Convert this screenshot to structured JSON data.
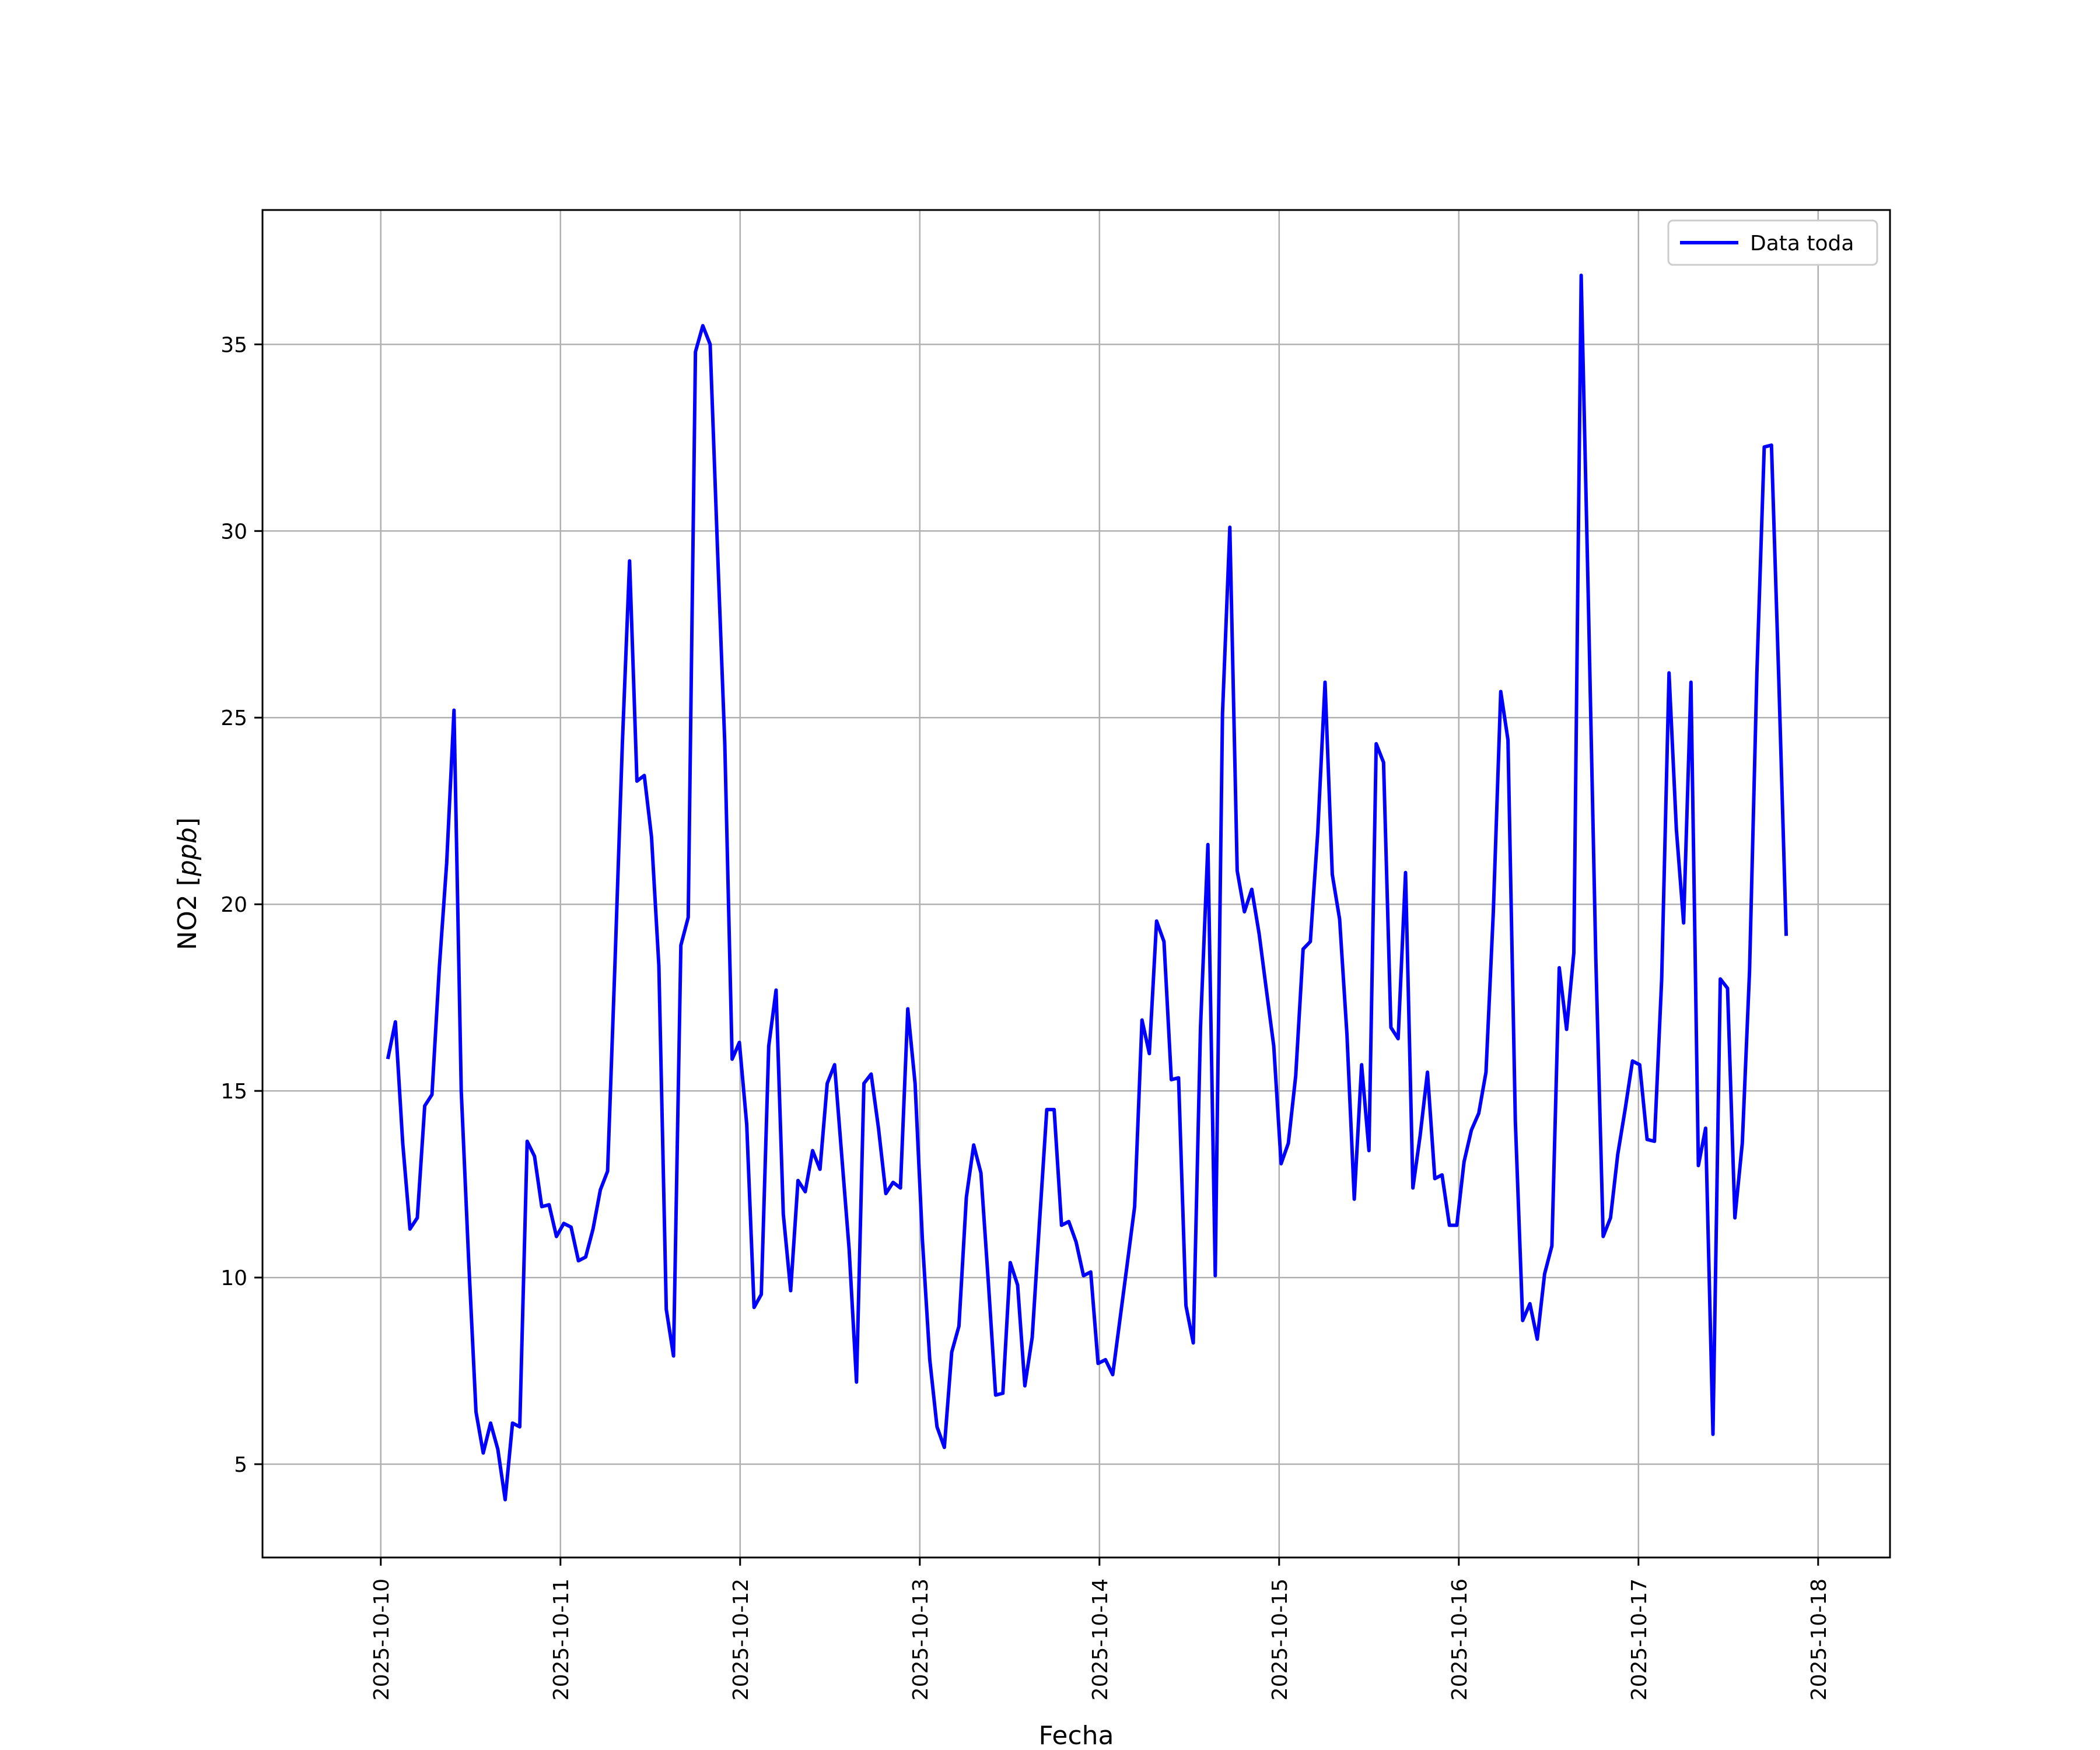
{
  "chart_data": {
    "type": "line",
    "title": "",
    "xlabel": "Fecha",
    "ylabel_prefix": "NO2 [",
    "ylabel_unit": "ppb",
    "ylabel_suffix": "]",
    "x_tick_labels": [
      "2025-10-10",
      "2025-10-11",
      "2025-10-12",
      "2025-10-13",
      "2025-10-14",
      "2025-10-15",
      "2025-10-16",
      "2025-10-17",
      "2025-10-18"
    ],
    "y_ticks": [
      5,
      10,
      15,
      20,
      25,
      30,
      35
    ],
    "xlim": [
      "2025-10-09 08:12",
      "2025-10-18 09:36"
    ],
    "ylim": [
      2.5,
      38.6
    ],
    "grid": true,
    "legend_position": "top-right",
    "series": [
      {
        "name": "Data toda",
        "color": "#0000ff",
        "points": [
          [
            "2025-10-10 00:59",
            15.9
          ],
          [
            "2025-10-10 01:57",
            16.85
          ],
          [
            "2025-10-10 02:56",
            13.6
          ],
          [
            "2025-10-10 03:54",
            11.3
          ],
          [
            "2025-10-10 04:53",
            11.6
          ],
          [
            "2025-10-10 05:52",
            14.6
          ],
          [
            "2025-10-10 06:50",
            14.9
          ],
          [
            "2025-10-10 07:49",
            18.3
          ],
          [
            "2025-10-10 08:48",
            21.1
          ],
          [
            "2025-10-10 09:47",
            25.2
          ],
          [
            "2025-10-10 10:45",
            15.0
          ],
          [
            "2025-10-10 11:44",
            10.5
          ],
          [
            "2025-10-10 12:43",
            6.4
          ],
          [
            "2025-10-10 13:41",
            5.3
          ],
          [
            "2025-10-10 14:40",
            6.1
          ],
          [
            "2025-10-10 15:38",
            5.4
          ],
          [
            "2025-10-10 16:37",
            4.05
          ],
          [
            "2025-10-10 17:36",
            6.1
          ],
          [
            "2025-10-10 18:34",
            6.0
          ],
          [
            "2025-10-10 19:33",
            13.65
          ],
          [
            "2025-10-10 20:32",
            13.25
          ],
          [
            "2025-10-10 21:30",
            11.9
          ],
          [
            "2025-10-10 22:29",
            11.95
          ],
          [
            "2025-10-10 23:28",
            11.1
          ],
          [
            "2025-10-11 00:27",
            11.45
          ],
          [
            "2025-10-11 01:25",
            11.35
          ],
          [
            "2025-10-11 02:24",
            10.45
          ],
          [
            "2025-10-11 03:22",
            10.55
          ],
          [
            "2025-10-11 04:21",
            11.3
          ],
          [
            "2025-10-11 05:20",
            12.35
          ],
          [
            "2025-10-11 06:18",
            12.85
          ],
          [
            "2025-10-11 07:17",
            18.4
          ],
          [
            "2025-10-11 08:16",
            24.3
          ],
          [
            "2025-10-11 09:14",
            29.2
          ],
          [
            "2025-10-11 10:13",
            23.3
          ],
          [
            "2025-10-11 11:12",
            23.45
          ],
          [
            "2025-10-11 12:10",
            21.8
          ],
          [
            "2025-10-11 13:09",
            18.35
          ],
          [
            "2025-10-11 14:08",
            9.15
          ],
          [
            "2025-10-11 15:06",
            7.9
          ],
          [
            "2025-10-11 16:05",
            18.9
          ],
          [
            "2025-10-11 17:04",
            19.65
          ],
          [
            "2025-10-11 18:02",
            34.8
          ],
          [
            "2025-10-11 19:01",
            35.5
          ],
          [
            "2025-10-11 20:00",
            35.0
          ],
          [
            "2025-10-11 20:58",
            29.6
          ],
          [
            "2025-10-11 21:57",
            24.3
          ],
          [
            "2025-10-11 22:56",
            15.85
          ],
          [
            "2025-10-11 23:54",
            16.3
          ],
          [
            "2025-10-12 00:53",
            14.1
          ],
          [
            "2025-10-12 01:52",
            9.2
          ],
          [
            "2025-10-12 02:50",
            9.55
          ],
          [
            "2025-10-12 03:49",
            16.2
          ],
          [
            "2025-10-12 04:48",
            17.7
          ],
          [
            "2025-10-12 05:46",
            11.7
          ],
          [
            "2025-10-12 06:45",
            9.65
          ],
          [
            "2025-10-12 07:44",
            12.6
          ],
          [
            "2025-10-12 08:42",
            12.3
          ],
          [
            "2025-10-12 09:41",
            13.4
          ],
          [
            "2025-10-12 10:40",
            12.9
          ],
          [
            "2025-10-12 11:38",
            15.2
          ],
          [
            "2025-10-12 12:37",
            15.7
          ],
          [
            "2025-10-12 13:36",
            13.2
          ],
          [
            "2025-10-12 14:34",
            10.75
          ],
          [
            "2025-10-12 15:33",
            7.2
          ],
          [
            "2025-10-12 16:32",
            15.2
          ],
          [
            "2025-10-12 17:30",
            15.45
          ],
          [
            "2025-10-12 18:29",
            14.0
          ],
          [
            "2025-10-12 19:28",
            12.25
          ],
          [
            "2025-10-12 20:26",
            12.55
          ],
          [
            "2025-10-12 21:25",
            12.4
          ],
          [
            "2025-10-12 22:24",
            17.2
          ],
          [
            "2025-10-12 23:22",
            15.2
          ],
          [
            "2025-10-13 00:21",
            11.0
          ],
          [
            "2025-10-13 01:20",
            7.8
          ],
          [
            "2025-10-13 02:18",
            6.0
          ],
          [
            "2025-10-13 03:17",
            5.45
          ],
          [
            "2025-10-13 04:16",
            8.0
          ],
          [
            "2025-10-13 05:14",
            8.7
          ],
          [
            "2025-10-13 06:13",
            12.15
          ],
          [
            "2025-10-13 07:12",
            13.55
          ],
          [
            "2025-10-13 08:10",
            12.8
          ],
          [
            "2025-10-13 09:09",
            9.9
          ],
          [
            "2025-10-13 10:08",
            6.85
          ],
          [
            "2025-10-13 11:06",
            6.9
          ],
          [
            "2025-10-13 12:05",
            10.4
          ],
          [
            "2025-10-13 13:04",
            9.8
          ],
          [
            "2025-10-13 14:02",
            7.1
          ],
          [
            "2025-10-13 15:01",
            8.4
          ],
          [
            "2025-10-13 16:00",
            11.5
          ],
          [
            "2025-10-13 16:58",
            14.5
          ],
          [
            "2025-10-13 17:57",
            14.5
          ],
          [
            "2025-10-13 18:56",
            11.4
          ],
          [
            "2025-10-13 19:54",
            11.5
          ],
          [
            "2025-10-13 20:53",
            10.95
          ],
          [
            "2025-10-13 21:52",
            10.05
          ],
          [
            "2025-10-13 22:50",
            10.15
          ],
          [
            "2025-10-13 23:49",
            7.7
          ],
          [
            "2025-10-14 00:48",
            7.8
          ],
          [
            "2025-10-14 01:46",
            7.4
          ],
          [
            "2025-10-14 02:45",
            8.9
          ],
          [
            "2025-10-14 03:44",
            10.4
          ],
          [
            "2025-10-14 04:42",
            11.9
          ],
          [
            "2025-10-14 05:41",
            16.9
          ],
          [
            "2025-10-14 06:40",
            16.0
          ],
          [
            "2025-10-14 07:38",
            19.55
          ],
          [
            "2025-10-14 08:37",
            19.0
          ],
          [
            "2025-10-14 09:36",
            15.3
          ],
          [
            "2025-10-14 10:34",
            15.35
          ],
          [
            "2025-10-14 11:33",
            9.25
          ],
          [
            "2025-10-14 12:32",
            8.25
          ],
          [
            "2025-10-14 13:30",
            16.7
          ],
          [
            "2025-10-14 14:29",
            21.6
          ],
          [
            "2025-10-14 15:28",
            10.05
          ],
          [
            "2025-10-14 16:26",
            25.1
          ],
          [
            "2025-10-14 17:25",
            30.1
          ],
          [
            "2025-10-14 18:24",
            20.9
          ],
          [
            "2025-10-14 19:22",
            19.8
          ],
          [
            "2025-10-14 20:21",
            20.4
          ],
          [
            "2025-10-14 21:20",
            19.2
          ],
          [
            "2025-10-14 22:18",
            17.7
          ],
          [
            "2025-10-14 23:17",
            16.2
          ],
          [
            "2025-10-15 00:16",
            13.05
          ],
          [
            "2025-10-15 01:14",
            13.6
          ],
          [
            "2025-10-15 02:13",
            15.4
          ],
          [
            "2025-10-15 03:12",
            18.8
          ],
          [
            "2025-10-15 04:10",
            19.0
          ],
          [
            "2025-10-15 05:09",
            21.9
          ],
          [
            "2025-10-15 06:08",
            25.95
          ],
          [
            "2025-10-15 07:06",
            20.8
          ],
          [
            "2025-10-15 08:05",
            19.6
          ],
          [
            "2025-10-15 09:04",
            16.5
          ],
          [
            "2025-10-15 10:02",
            12.1
          ],
          [
            "2025-10-15 11:01",
            15.7
          ],
          [
            "2025-10-15 12:00",
            13.4
          ],
          [
            "2025-10-15 12:58",
            24.3
          ],
          [
            "2025-10-15 13:57",
            23.8
          ],
          [
            "2025-10-15 14:56",
            16.7
          ],
          [
            "2025-10-15 15:54",
            16.4
          ],
          [
            "2025-10-15 16:53",
            20.85
          ],
          [
            "2025-10-15 17:52",
            12.4
          ],
          [
            "2025-10-15 18:50",
            13.8
          ],
          [
            "2025-10-15 19:49",
            15.5
          ],
          [
            "2025-10-15 20:48",
            12.65
          ],
          [
            "2025-10-15 21:46",
            12.75
          ],
          [
            "2025-10-15 22:45",
            11.4
          ],
          [
            "2025-10-15 23:44",
            11.4
          ],
          [
            "2025-10-16 00:42",
            13.1
          ],
          [
            "2025-10-16 01:41",
            13.95
          ],
          [
            "2025-10-16 02:40",
            14.4
          ],
          [
            "2025-10-16 03:38",
            15.5
          ],
          [
            "2025-10-16 04:37",
            19.8
          ],
          [
            "2025-10-16 05:36",
            25.7
          ],
          [
            "2025-10-16 06:34",
            24.4
          ],
          [
            "2025-10-16 07:33",
            14.2
          ],
          [
            "2025-10-16 08:32",
            8.85
          ],
          [
            "2025-10-16 09:30",
            9.3
          ],
          [
            "2025-10-16 10:29",
            8.35
          ],
          [
            "2025-10-16 11:28",
            10.1
          ],
          [
            "2025-10-16 12:26",
            10.85
          ],
          [
            "2025-10-16 13:25",
            18.3
          ],
          [
            "2025-10-16 14:24",
            16.65
          ],
          [
            "2025-10-16 15:22",
            18.7
          ],
          [
            "2025-10-16 16:21",
            36.85
          ],
          [
            "2025-10-16 17:20",
            27.9
          ],
          [
            "2025-10-16 18:18",
            18.6
          ],
          [
            "2025-10-16 19:17",
            11.1
          ],
          [
            "2025-10-16 20:16",
            11.6
          ],
          [
            "2025-10-16 21:14",
            13.3
          ],
          [
            "2025-10-16 22:13",
            14.5
          ],
          [
            "2025-10-16 23:12",
            15.8
          ],
          [
            "2025-10-17 00:10",
            15.7
          ],
          [
            "2025-10-17 01:09",
            13.7
          ],
          [
            "2025-10-17 02:08",
            13.65
          ],
          [
            "2025-10-17 03:06",
            18.0
          ],
          [
            "2025-10-17 04:05",
            26.2
          ],
          [
            "2025-10-17 05:04",
            22.0
          ],
          [
            "2025-10-17 06:02",
            19.5
          ],
          [
            "2025-10-17 07:01",
            25.95
          ],
          [
            "2025-10-17 08:00",
            13.0
          ],
          [
            "2025-10-17 08:58",
            14.0
          ],
          [
            "2025-10-17 09:57",
            5.8
          ],
          [
            "2025-10-17 10:56",
            18.0
          ],
          [
            "2025-10-17 11:54",
            17.75
          ],
          [
            "2025-10-17 12:53",
            11.6
          ],
          [
            "2025-10-17 13:52",
            13.6
          ],
          [
            "2025-10-17 14:50",
            18.2
          ],
          [
            "2025-10-17 15:49",
            26.2
          ],
          [
            "2025-10-17 16:48",
            32.25
          ],
          [
            "2025-10-17 17:46",
            32.3
          ],
          [
            "2025-10-17 18:45",
            26.0
          ],
          [
            "2025-10-17 19:44",
            19.2
          ]
        ]
      }
    ]
  }
}
